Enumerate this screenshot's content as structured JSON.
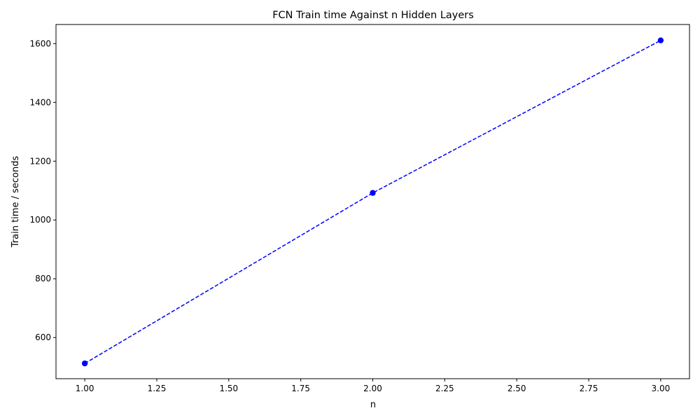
{
  "chart_data": {
    "type": "line",
    "title": "FCN Train time Against n Hidden Layers",
    "xlabel": "n",
    "ylabel": "Train time / seconds",
    "xlim": [
      0.9,
      3.1
    ],
    "ylim": [
      460,
      1665
    ],
    "x_ticks": [
      1.0,
      1.25,
      1.5,
      1.75,
      2.0,
      2.25,
      2.5,
      2.75,
      3.0
    ],
    "x_tick_labels": [
      "1.00",
      "1.25",
      "1.50",
      "1.75",
      "2.00",
      "2.25",
      "2.50",
      "2.75",
      "3.00"
    ],
    "y_ticks": [
      600,
      800,
      1000,
      1200,
      1400,
      1600
    ],
    "y_tick_labels": [
      "600",
      "800",
      "1000",
      "1200",
      "1400",
      "1600"
    ],
    "grid": false,
    "series": [
      {
        "x": [
          1,
          2,
          3
        ],
        "y": [
          512,
          1092,
          1611
        ],
        "color": "#0000ff",
        "line_style": "dashed",
        "marker": "circle"
      }
    ]
  }
}
